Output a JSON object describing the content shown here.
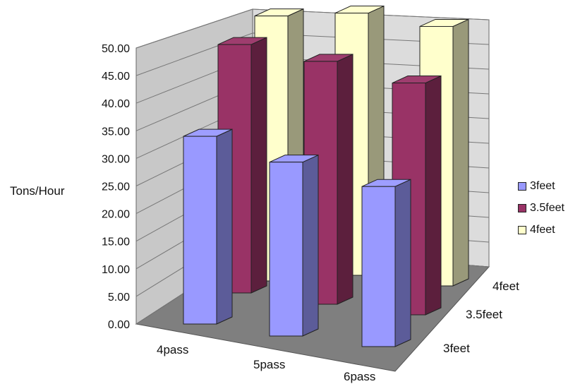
{
  "chart_data": {
    "type": "bar",
    "subtype": "3d-column",
    "title": "",
    "ylabel": "Tons/Hour",
    "xlabel": "",
    "categories": [
      "4pass",
      "5pass",
      "6pass"
    ],
    "depth_labels": [
      "3feet",
      "3.5feet",
      "4feet"
    ],
    "ylim": [
      0,
      50
    ],
    "y_ticks": [
      "0.00",
      "5.00",
      "10.00",
      "15.00",
      "20.00",
      "25.00",
      "30.00",
      "35.00",
      "40.00",
      "45.00",
      "50.00"
    ],
    "series": [
      {
        "name": "3feet",
        "color": "#9999ff",
        "values": [
          34.0,
          31.5,
          29.0
        ]
      },
      {
        "name": "3.5feet",
        "color": "#993366",
        "values": [
          45.0,
          44.0,
          42.0
        ]
      },
      {
        "name": "4feet",
        "color": "#ffffcc",
        "values": [
          48.0,
          47.5,
          47.0
        ]
      }
    ],
    "legend_position": "right",
    "grid": true
  }
}
